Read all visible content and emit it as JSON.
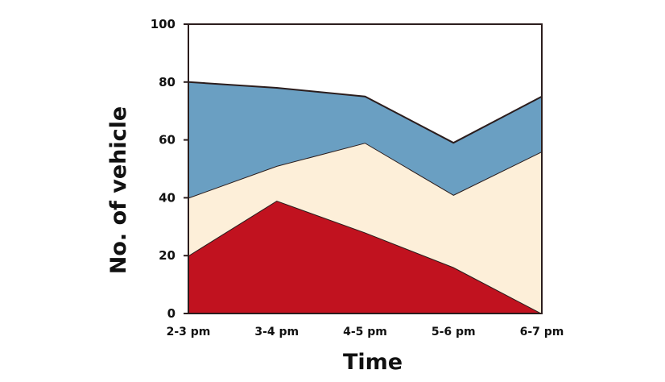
{
  "chart_data": {
    "type": "area",
    "stacked": true,
    "categories": [
      "2-3 pm",
      "3-4 pm",
      "4-5 pm",
      "5-6 pm",
      "6-7 pm"
    ],
    "series": [
      {
        "color": "#c1121f",
        "values": [
          20,
          39,
          28,
          16,
          0
        ]
      },
      {
        "color": "#fdefd9",
        "values": [
          20,
          12,
          31,
          25,
          56
        ]
      },
      {
        "color": "#6a9fc2",
        "values": [
          40,
          27,
          16,
          18,
          19
        ]
      }
    ],
    "title": "",
    "xlabel": "Time",
    "ylabel": "No. of vehicle",
    "ylim": [
      0,
      100
    ],
    "yticks": [
      0,
      20,
      40,
      60,
      80,
      100
    ],
    "grid": false,
    "legend": "none",
    "outline_color": "#2b1d1d"
  }
}
